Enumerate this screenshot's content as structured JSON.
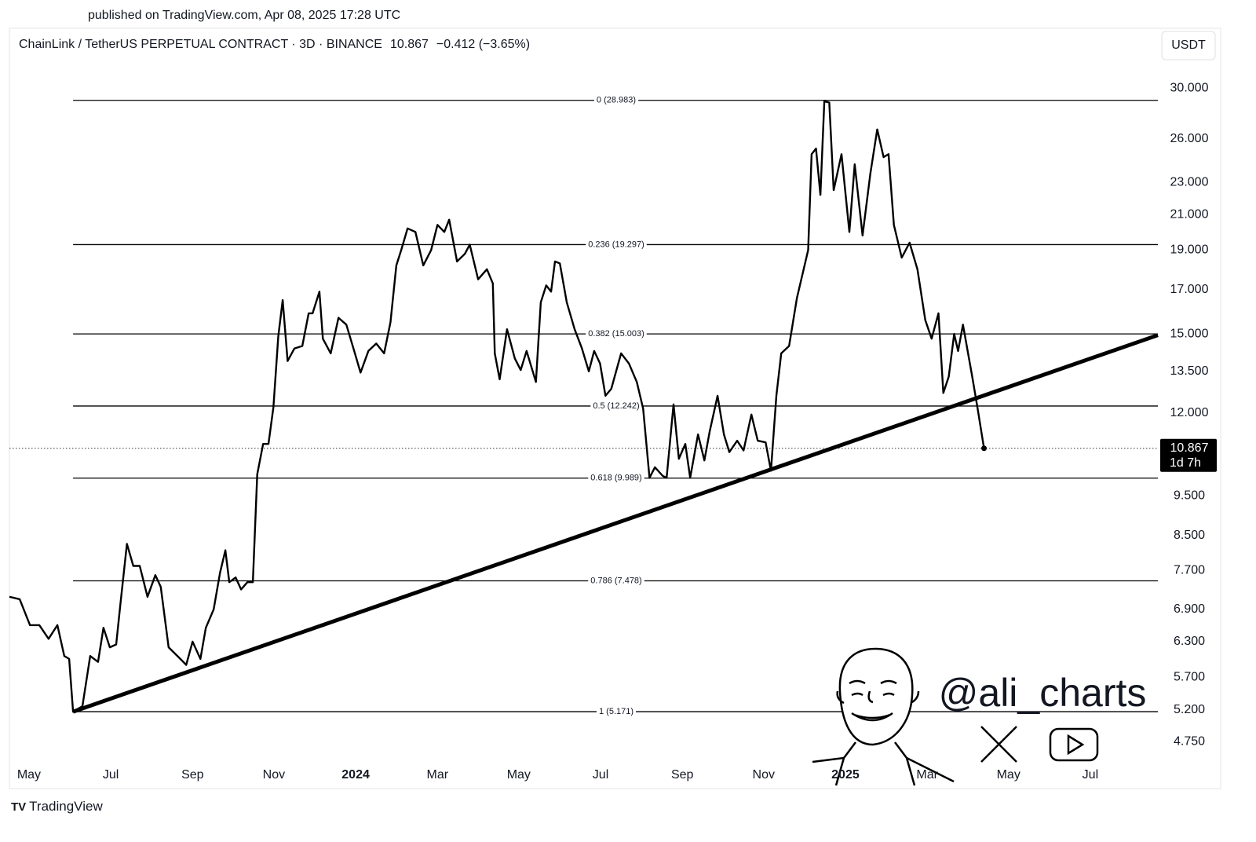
{
  "published": "published on TradingView.com, Apr 08, 2025 17:28 UTC",
  "brand": "TradingView",
  "watermark": "@ali_charts",
  "chart_data": {
    "type": "line",
    "title": "ChainLink / TetherUS PERPETUAL CONTRACT · 3D · BINANCE",
    "change": "−0.412 (−3.65%)",
    "currency": "USDT",
    "countdown": "1d 7h",
    "last_price": 10.867,
    "log_scale": true,
    "grid": false,
    "x": [
      2023.293,
      2023.314,
      2023.335,
      2023.354,
      2023.373,
      2023.391,
      2023.405,
      2023.415,
      2023.423,
      2023.442,
      2023.458,
      2023.474,
      2023.485,
      2023.498,
      2023.511,
      2023.519,
      2023.533,
      2023.546,
      2023.559,
      2023.575,
      2023.591,
      2023.602,
      2023.618,
      2023.642,
      2023.654,
      2023.667,
      2023.683,
      2023.694,
      2023.71,
      2023.723,
      2023.734,
      2023.742,
      2023.755,
      2023.766,
      2023.779,
      2023.79,
      2023.799,
      2023.811,
      2023.822,
      2023.832,
      2023.842,
      2023.851,
      2023.861,
      2023.875,
      2023.891,
      2023.904,
      2023.912,
      2023.926,
      2023.933,
      2023.949,
      2023.965,
      2023.981,
      2023.997,
      2024.01,
      2024.026,
      2024.042,
      2024.058,
      2024.071,
      2024.083,
      2024.093,
      2024.106,
      2024.122,
      2024.138,
      2024.154,
      2024.167,
      2024.181,
      2024.191,
      2024.207,
      2024.223,
      2024.233,
      2024.25,
      2024.268,
      2024.28,
      2024.284,
      2024.294,
      2024.309,
      2024.325,
      2024.337,
      2024.349,
      2024.368,
      2024.378,
      2024.389,
      2024.399,
      2024.407,
      2024.417,
      2024.431,
      2024.447,
      2024.462,
      2024.476,
      2024.487,
      2024.499,
      2024.51,
      2024.522,
      2024.542,
      2024.558,
      2024.574,
      2024.587,
      2024.6,
      2024.611,
      2024.627,
      2024.635,
      2024.649,
      2024.66,
      2024.673,
      2024.683,
      2024.699,
      2024.712,
      2024.723,
      2024.739,
      2024.752,
      2024.763,
      2024.779,
      2024.792,
      2024.808,
      2024.821,
      2024.837,
      2024.848,
      2024.859,
      2024.869,
      2024.885,
      2024.901,
      2024.924,
      2024.931,
      2024.94,
      2024.949,
      2024.957,
      2024.967,
      2024.976,
      2024.992,
      2025.008,
      2025.019,
      2025.035,
      2025.051,
      2025.065,
      2025.078,
      2025.088,
      2025.099,
      2025.115,
      2025.131,
      2025.147,
      2025.163,
      2025.176,
      2025.19,
      2025.2,
      2025.211,
      2025.222,
      2025.23,
      2025.24,
      2025.259,
      2025.27,
      2025.283
    ],
    "series": [
      {
        "color": "#000000",
        "values": [
          7.15,
          7.1,
          6.6,
          6.6,
          6.35,
          6.6,
          6.05,
          6.0,
          5.171,
          5.25,
          6.05,
          5.95,
          6.55,
          6.2,
          6.25,
          6.95,
          8.3,
          7.8,
          7.8,
          7.15,
          7.6,
          7.35,
          6.2,
          6.0,
          5.9,
          6.3,
          6.0,
          6.55,
          6.9,
          7.65,
          8.15,
          7.45,
          7.55,
          7.3,
          7.45,
          7.45,
          10.1,
          11.0,
          11.0,
          12.2,
          14.9,
          16.5,
          13.9,
          14.4,
          14.5,
          15.9,
          15.9,
          16.9,
          14.8,
          14.2,
          15.7,
          15.4,
          14.3,
          13.45,
          14.3,
          14.6,
          14.2,
          15.5,
          18.2,
          19.0,
          20.2,
          20.0,
          18.2,
          19.0,
          20.4,
          20.0,
          20.7,
          18.4,
          18.8,
          19.3,
          17.5,
          18.0,
          17.3,
          14.2,
          13.2,
          15.2,
          14.0,
          13.55,
          14.3,
          13.1,
          16.4,
          17.2,
          16.9,
          18.4,
          18.3,
          16.4,
          15.2,
          14.4,
          13.5,
          14.3,
          13.8,
          12.6,
          12.85,
          14.2,
          13.8,
          13.1,
          12.15,
          10.0,
          10.3,
          10.05,
          10.0,
          12.3,
          10.55,
          11.0,
          10.0,
          11.3,
          10.5,
          11.4,
          12.6,
          11.3,
          10.75,
          11.1,
          10.8,
          11.95,
          11.1,
          11.05,
          10.2,
          12.6,
          14.2,
          14.5,
          16.6,
          19.0,
          24.9,
          25.3,
          22.2,
          28.9,
          28.8,
          22.5,
          24.9,
          20.0,
          24.2,
          19.8,
          23.6,
          26.7,
          24.7,
          24.9,
          20.4,
          18.6,
          19.4,
          18.0,
          15.6,
          14.8,
          15.9,
          12.7,
          13.3,
          15.0,
          14.3,
          15.4,
          13.3,
          12.15,
          10.867
        ]
      }
    ],
    "fib_levels": [
      {
        "label": "0 (28.983)",
        "value": 28.983
      },
      {
        "label": "0.236 (19.297)",
        "value": 19.297
      },
      {
        "label": "0.382 (15.003)",
        "value": 15.003
      },
      {
        "label": "0.5 (12.242)",
        "value": 12.242
      },
      {
        "label": "0.618 (9.989)",
        "value": 9.989
      },
      {
        "label": "0.786 (7.478)",
        "value": 7.478
      },
      {
        "label": "1 (5.171)",
        "value": 5.171
      }
    ],
    "fib_x": [
      2023.423,
      2025.638
    ],
    "trend_line": {
      "x": [
        2023.423,
        2025.638
      ],
      "values": [
        5.171,
        14.95
      ]
    },
    "xlim": [
      2023.293,
      2025.638
    ],
    "ylim": [
      4.2,
      35.2
    ],
    "xticks": [
      {
        "value": 2023.333,
        "label": "May"
      },
      {
        "value": 2023.5,
        "label": "Jul"
      },
      {
        "value": 2023.667,
        "label": "Sep"
      },
      {
        "value": 2023.833,
        "label": "Nov"
      },
      2024,
      {
        "value": 2024.167,
        "label": "Mar"
      },
      {
        "value": 2024.333,
        "label": "May"
      },
      {
        "value": 2024.5,
        "label": "Jul"
      },
      {
        "value": 2024.667,
        "label": "Sep"
      },
      {
        "value": 2024.833,
        "label": "Nov"
      },
      2025,
      {
        "value": 2025.167,
        "label": "Mar"
      },
      {
        "value": 2025.333,
        "label": "May"
      },
      {
        "value": 2025.5,
        "label": "Jul"
      }
    ],
    "yticks": [
      {
        "value": 30,
        "label": "30.000"
      },
      {
        "value": 26,
        "label": "26.000"
      },
      {
        "value": 23,
        "label": "23.000"
      },
      {
        "value": 21,
        "label": "21.000"
      },
      {
        "value": 19,
        "label": "19.000"
      },
      {
        "value": 17,
        "label": "17.000"
      },
      {
        "value": 15,
        "label": "15.000"
      },
      {
        "value": 13.5,
        "label": "13.500"
      },
      {
        "value": 12,
        "label": "12.000"
      },
      {
        "value": 9.5,
        "label": "9.500"
      },
      {
        "value": 8.5,
        "label": "8.500"
      },
      {
        "value": 7.7,
        "label": "7.700"
      },
      {
        "value": 6.9,
        "label": "6.900"
      },
      {
        "value": 6.3,
        "label": "6.300"
      },
      {
        "value": 5.7,
        "label": "5.700"
      },
      {
        "value": 5.2,
        "label": "5.200"
      },
      {
        "value": 4.75,
        "label": "4.750"
      }
    ]
  }
}
